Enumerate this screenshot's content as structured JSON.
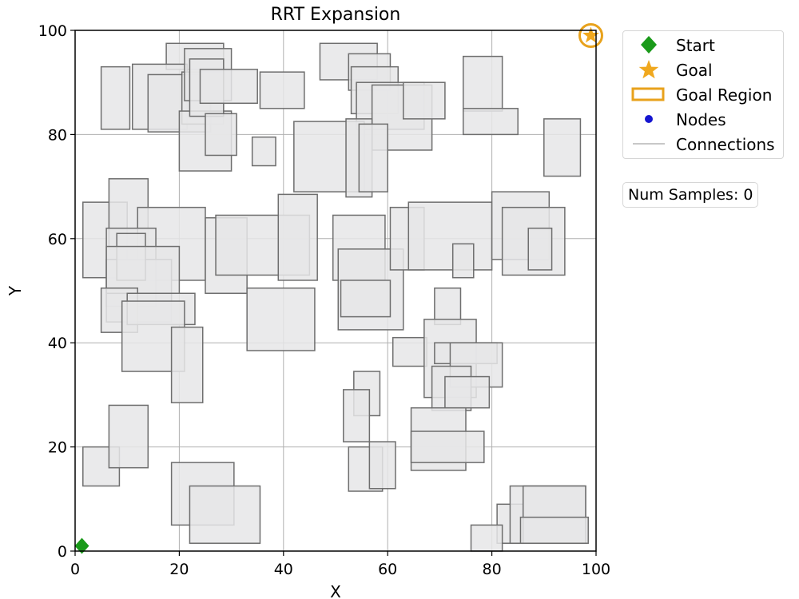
{
  "chart_data": {
    "type": "scatter",
    "title": "RRT Expansion",
    "xlabel": "X",
    "ylabel": "Y",
    "xlim": [
      0,
      100
    ],
    "ylim": [
      0,
      100
    ],
    "xticks": [
      0,
      20,
      40,
      60,
      80,
      100
    ],
    "yticks": [
      0,
      20,
      40,
      60,
      80,
      100
    ],
    "grid": true,
    "start": {
      "x": 1.3,
      "y": 1.0
    },
    "goal": {
      "x": 99.0,
      "y": 99.0
    },
    "nodes": [],
    "connections": [],
    "legend_position": "outside-right",
    "obstacles": [
      [
        17.5,
        92.5,
        28.5,
        97.5
      ],
      [
        5,
        81,
        10.5,
        93
      ],
      [
        11,
        81,
        21.5,
        93.5
      ],
      [
        14,
        80.5,
        26,
        91.5
      ],
      [
        20.5,
        82,
        28.5,
        92
      ],
      [
        20,
        73,
        30,
        84.5
      ],
      [
        21,
        86.5,
        30,
        96.5
      ],
      [
        22,
        83.5,
        28.5,
        94.5
      ],
      [
        24,
        86,
        35,
        92.5
      ],
      [
        25,
        76,
        31,
        84
      ],
      [
        35.5,
        85,
        44,
        92
      ],
      [
        34,
        74,
        38.5,
        79.5
      ],
      [
        47,
        90.5,
        58,
        97.5
      ],
      [
        52.5,
        88.5,
        60.5,
        95.5
      ],
      [
        53,
        84,
        62,
        93
      ],
      [
        54,
        81,
        67,
        90
      ],
      [
        57,
        77,
        68.5,
        89.5
      ],
      [
        63,
        83,
        71,
        90
      ],
      [
        74.5,
        84.5,
        82,
        95
      ],
      [
        74.5,
        80,
        85,
        85
      ],
      [
        90,
        72,
        97,
        83
      ],
      [
        42,
        69,
        55.5,
        82.5
      ],
      [
        52,
        68,
        57,
        83
      ],
      [
        54.5,
        69,
        60,
        82
      ],
      [
        1.5,
        52.5,
        10,
        67
      ],
      [
        6.5,
        58,
        14,
        71.5
      ],
      [
        12,
        52,
        25,
        66
      ],
      [
        6,
        47,
        15.5,
        62
      ],
      [
        6,
        44,
        18.5,
        56
      ],
      [
        8,
        52,
        13.5,
        61
      ],
      [
        6,
        49.5,
        20,
        58.5
      ],
      [
        5,
        42,
        12,
        50.5
      ],
      [
        10,
        43.5,
        23,
        49.5
      ],
      [
        9,
        34.5,
        21,
        48
      ],
      [
        18.5,
        28.5,
        24.5,
        43
      ],
      [
        25,
        49.5,
        33,
        64
      ],
      [
        27,
        53,
        45,
        64.5
      ],
      [
        39,
        52,
        46.5,
        68.5
      ],
      [
        49.5,
        52,
        59.5,
        64.5
      ],
      [
        50.5,
        42.5,
        63,
        58
      ],
      [
        51,
        45,
        60.5,
        52
      ],
      [
        60.5,
        54,
        67,
        66
      ],
      [
        64,
        54,
        80,
        67
      ],
      [
        72.5,
        52.5,
        76.5,
        59
      ],
      [
        80,
        56,
        91,
        69
      ],
      [
        82,
        53,
        94,
        66
      ],
      [
        87,
        54,
        91.5,
        62
      ],
      [
        33,
        38.5,
        46,
        50.5
      ],
      [
        61,
        35.5,
        67.5,
        41
      ],
      [
        69,
        43.5,
        74,
        50.5
      ],
      [
        67,
        29.5,
        77,
        44.5
      ],
      [
        69,
        36,
        81,
        40
      ],
      [
        72,
        31.5,
        82,
        40
      ],
      [
        68.5,
        27,
        76,
        35.5
      ],
      [
        71,
        27.5,
        79.5,
        33.5
      ],
      [
        53.5,
        26,
        58.5,
        34.5
      ],
      [
        51.5,
        21,
        56.5,
        31
      ],
      [
        64.5,
        15.5,
        75,
        27.5
      ],
      [
        64.5,
        17,
        78.5,
        23
      ],
      [
        52.5,
        11.5,
        59,
        20
      ],
      [
        56.5,
        12,
        61.5,
        21
      ],
      [
        1.5,
        12.5,
        8.5,
        20
      ],
      [
        6.5,
        16,
        14,
        28
      ],
      [
        18.5,
        5,
        30.5,
        17
      ],
      [
        22,
        1.5,
        35.5,
        12.5
      ],
      [
        81,
        1.5,
        86,
        9
      ],
      [
        83.5,
        1.5,
        98,
        12.5
      ],
      [
        86,
        1.5,
        98,
        12.5
      ],
      [
        85.5,
        1.5,
        98.5,
        6.5
      ],
      [
        76,
        0,
        82,
        5
      ]
    ]
  },
  "legend": {
    "items": [
      {
        "label": "Start",
        "symbol": "diamond",
        "color": "#1a9a1a"
      },
      {
        "label": "Goal",
        "symbol": "star",
        "color": "#f0a81e"
      },
      {
        "label": "Goal Region",
        "symbol": "rect-outline",
        "color": "#e8a21c"
      },
      {
        "label": "Nodes",
        "symbol": "dot",
        "color": "#1515d0"
      },
      {
        "label": "Connections",
        "symbol": "line",
        "color": "#c8c8c8"
      }
    ]
  },
  "status": {
    "samples_label": "Num Samples: 0"
  },
  "colors": {
    "obstacle_fill": "#e6e6e8",
    "obstacle_edge": "#6e6e6e",
    "grid": "#b0b0b0"
  }
}
